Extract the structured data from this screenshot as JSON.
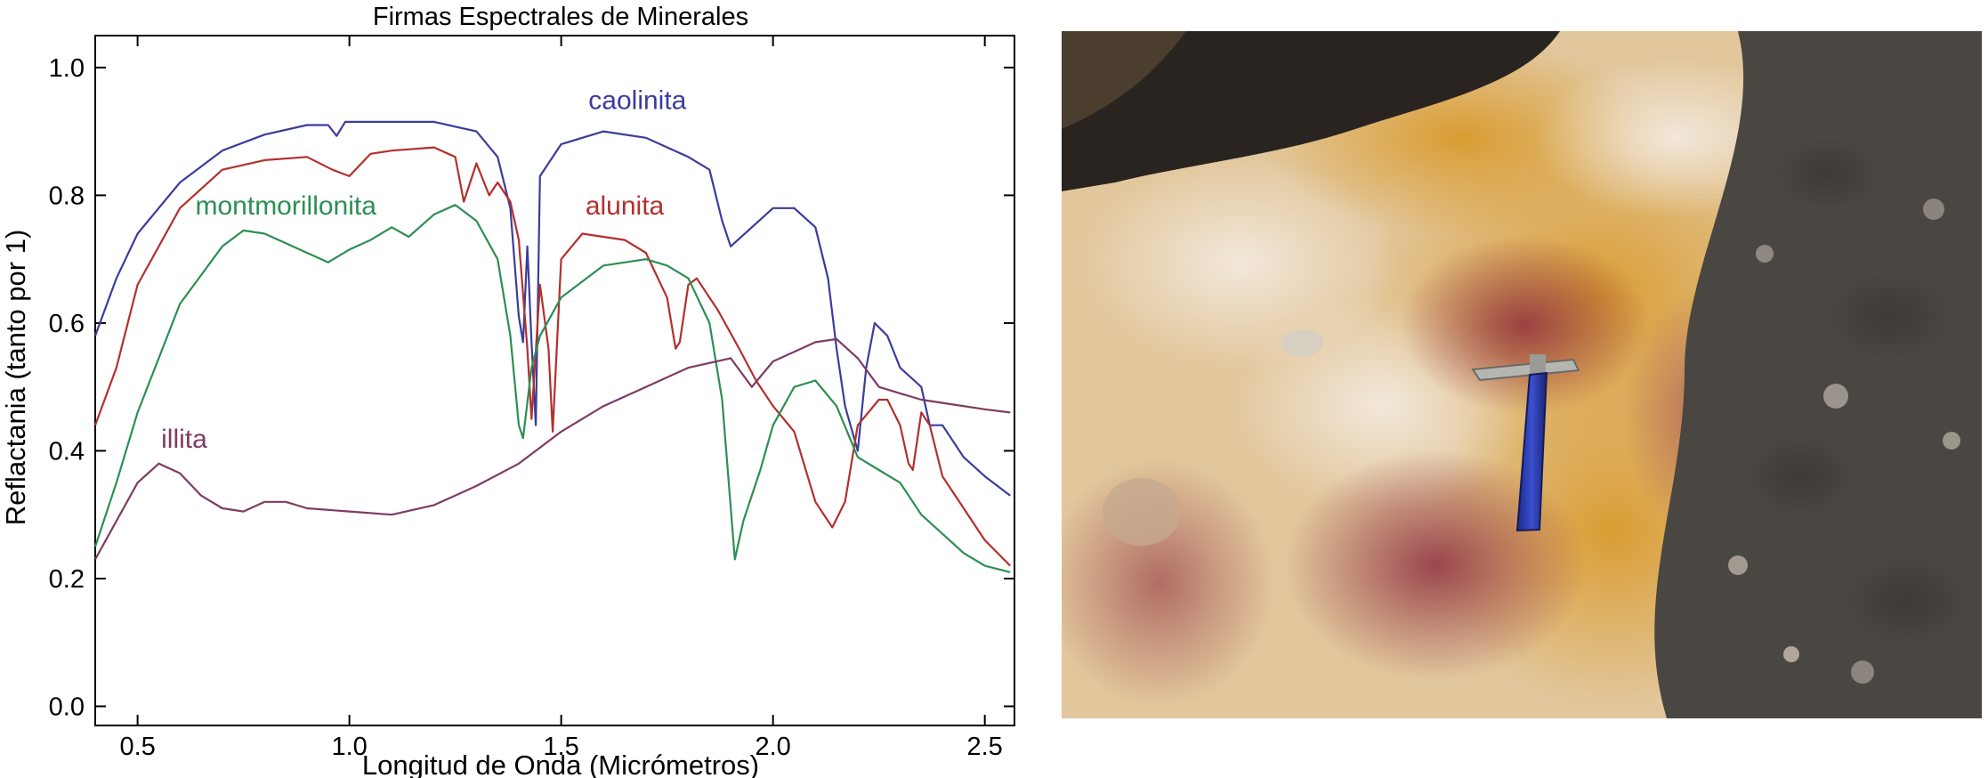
{
  "chart_data": {
    "type": "line",
    "title": "Firmas Espectrales de Minerales",
    "xlabel": "Longitud de Onda (Micrómetros)",
    "ylabel": "Reflactania (tanto por 1)",
    "xlim": [
      0.4,
      2.57
    ],
    "ylim": [
      -0.03,
      1.05
    ],
    "x_ticks": [
      "0.5",
      "1.0",
      "1.5",
      "2.0",
      "2.5"
    ],
    "x_tick_values": [
      0.5,
      1.0,
      1.5,
      2.0,
      2.5
    ],
    "y_ticks": [
      "0.0",
      "0.2",
      "0.4",
      "0.6",
      "0.8",
      "1.0"
    ],
    "y_tick_values": [
      0.0,
      0.2,
      0.4,
      0.6,
      0.8,
      1.0
    ],
    "grid": false,
    "series": [
      {
        "name": "caolinita",
        "color": "#3a3d9b",
        "label_at": [
          1.68,
          0.935
        ],
        "points": [
          [
            0.4,
            0.58
          ],
          [
            0.45,
            0.67
          ],
          [
            0.5,
            0.74
          ],
          [
            0.6,
            0.82
          ],
          [
            0.7,
            0.87
          ],
          [
            0.8,
            0.895
          ],
          [
            0.9,
            0.91
          ],
          [
            0.95,
            0.91
          ],
          [
            0.97,
            0.893
          ],
          [
            0.99,
            0.915
          ],
          [
            1.1,
            0.915
          ],
          [
            1.2,
            0.915
          ],
          [
            1.3,
            0.9
          ],
          [
            1.35,
            0.86
          ],
          [
            1.38,
            0.78
          ],
          [
            1.4,
            0.61
          ],
          [
            1.41,
            0.57
          ],
          [
            1.42,
            0.72
          ],
          [
            1.43,
            0.57
          ],
          [
            1.44,
            0.44
          ],
          [
            1.45,
            0.83
          ],
          [
            1.5,
            0.88
          ],
          [
            1.6,
            0.9
          ],
          [
            1.7,
            0.89
          ],
          [
            1.8,
            0.86
          ],
          [
            1.85,
            0.84
          ],
          [
            1.88,
            0.76
          ],
          [
            1.9,
            0.72
          ],
          [
            1.95,
            0.75
          ],
          [
            2.0,
            0.78
          ],
          [
            2.05,
            0.78
          ],
          [
            2.1,
            0.75
          ],
          [
            2.13,
            0.67
          ],
          [
            2.15,
            0.56
          ],
          [
            2.17,
            0.47
          ],
          [
            2.2,
            0.4
          ],
          [
            2.22,
            0.53
          ],
          [
            2.24,
            0.6
          ],
          [
            2.27,
            0.58
          ],
          [
            2.3,
            0.53
          ],
          [
            2.35,
            0.5
          ],
          [
            2.37,
            0.44
          ],
          [
            2.4,
            0.44
          ],
          [
            2.45,
            0.39
          ],
          [
            2.5,
            0.36
          ],
          [
            2.56,
            0.33
          ]
        ]
      },
      {
        "name": "alunita",
        "color": "#b3302c",
        "label_at": [
          1.65,
          0.77
        ],
        "points": [
          [
            0.4,
            0.44
          ],
          [
            0.45,
            0.53
          ],
          [
            0.5,
            0.66
          ],
          [
            0.6,
            0.78
          ],
          [
            0.7,
            0.84
          ],
          [
            0.8,
            0.855
          ],
          [
            0.9,
            0.86
          ],
          [
            0.96,
            0.84
          ],
          [
            1.0,
            0.83
          ],
          [
            1.05,
            0.865
          ],
          [
            1.1,
            0.87
          ],
          [
            1.2,
            0.875
          ],
          [
            1.25,
            0.86
          ],
          [
            1.27,
            0.79
          ],
          [
            1.3,
            0.85
          ],
          [
            1.33,
            0.8
          ],
          [
            1.35,
            0.82
          ],
          [
            1.38,
            0.79
          ],
          [
            1.4,
            0.73
          ],
          [
            1.42,
            0.56
          ],
          [
            1.43,
            0.45
          ],
          [
            1.45,
            0.66
          ],
          [
            1.47,
            0.56
          ],
          [
            1.48,
            0.43
          ],
          [
            1.5,
            0.7
          ],
          [
            1.55,
            0.74
          ],
          [
            1.65,
            0.73
          ],
          [
            1.7,
            0.71
          ],
          [
            1.75,
            0.64
          ],
          [
            1.77,
            0.56
          ],
          [
            1.78,
            0.57
          ],
          [
            1.8,
            0.66
          ],
          [
            1.82,
            0.67
          ],
          [
            1.87,
            0.62
          ],
          [
            1.92,
            0.56
          ],
          [
            1.96,
            0.51
          ],
          [
            2.0,
            0.47
          ],
          [
            2.05,
            0.43
          ],
          [
            2.1,
            0.32
          ],
          [
            2.14,
            0.28
          ],
          [
            2.17,
            0.32
          ],
          [
            2.2,
            0.44
          ],
          [
            2.25,
            0.48
          ],
          [
            2.27,
            0.48
          ],
          [
            2.3,
            0.44
          ],
          [
            2.32,
            0.38
          ],
          [
            2.33,
            0.37
          ],
          [
            2.35,
            0.46
          ],
          [
            2.37,
            0.44
          ],
          [
            2.4,
            0.36
          ],
          [
            2.45,
            0.31
          ],
          [
            2.5,
            0.26
          ],
          [
            2.56,
            0.22
          ]
        ]
      },
      {
        "name": "montmorillonita",
        "color": "#2c8f53",
        "label_at": [
          0.85,
          0.77
        ],
        "points": [
          [
            0.4,
            0.25
          ],
          [
            0.45,
            0.35
          ],
          [
            0.5,
            0.46
          ],
          [
            0.6,
            0.63
          ],
          [
            0.7,
            0.72
          ],
          [
            0.75,
            0.745
          ],
          [
            0.8,
            0.74
          ],
          [
            0.9,
            0.71
          ],
          [
            0.95,
            0.695
          ],
          [
            1.0,
            0.715
          ],
          [
            1.05,
            0.73
          ],
          [
            1.1,
            0.75
          ],
          [
            1.14,
            0.735
          ],
          [
            1.2,
            0.77
          ],
          [
            1.25,
            0.785
          ],
          [
            1.3,
            0.76
          ],
          [
            1.35,
            0.7
          ],
          [
            1.38,
            0.58
          ],
          [
            1.4,
            0.44
          ],
          [
            1.41,
            0.42
          ],
          [
            1.43,
            0.53
          ],
          [
            1.45,
            0.58
          ],
          [
            1.5,
            0.64
          ],
          [
            1.6,
            0.69
          ],
          [
            1.7,
            0.7
          ],
          [
            1.75,
            0.69
          ],
          [
            1.8,
            0.67
          ],
          [
            1.85,
            0.6
          ],
          [
            1.88,
            0.48
          ],
          [
            1.91,
            0.23
          ],
          [
            1.93,
            0.29
          ],
          [
            1.97,
            0.37
          ],
          [
            2.0,
            0.44
          ],
          [
            2.05,
            0.5
          ],
          [
            2.1,
            0.51
          ],
          [
            2.15,
            0.47
          ],
          [
            2.2,
            0.39
          ],
          [
            2.25,
            0.37
          ],
          [
            2.3,
            0.35
          ],
          [
            2.35,
            0.3
          ],
          [
            2.4,
            0.27
          ],
          [
            2.45,
            0.24
          ],
          [
            2.5,
            0.22
          ],
          [
            2.56,
            0.21
          ]
        ]
      },
      {
        "name": "illita",
        "color": "#7e3b63",
        "label_at": [
          0.61,
          0.405
        ],
        "points": [
          [
            0.4,
            0.23
          ],
          [
            0.45,
            0.29
          ],
          [
            0.5,
            0.35
          ],
          [
            0.55,
            0.38
          ],
          [
            0.6,
            0.365
          ],
          [
            0.65,
            0.33
          ],
          [
            0.7,
            0.31
          ],
          [
            0.75,
            0.305
          ],
          [
            0.8,
            0.32
          ],
          [
            0.85,
            0.32
          ],
          [
            0.9,
            0.31
          ],
          [
            1.0,
            0.305
          ],
          [
            1.1,
            0.3
          ],
          [
            1.2,
            0.315
          ],
          [
            1.3,
            0.345
          ],
          [
            1.4,
            0.38
          ],
          [
            1.5,
            0.43
          ],
          [
            1.6,
            0.47
          ],
          [
            1.7,
            0.5
          ],
          [
            1.8,
            0.53
          ],
          [
            1.9,
            0.545
          ],
          [
            1.95,
            0.5
          ],
          [
            2.0,
            0.54
          ],
          [
            2.1,
            0.57
          ],
          [
            2.15,
            0.575
          ],
          [
            2.2,
            0.545
          ],
          [
            2.25,
            0.5
          ],
          [
            2.3,
            0.49
          ],
          [
            2.35,
            0.48
          ],
          [
            2.4,
            0.475
          ],
          [
            2.5,
            0.465
          ],
          [
            2.56,
            0.46
          ]
        ]
      }
    ]
  }
}
